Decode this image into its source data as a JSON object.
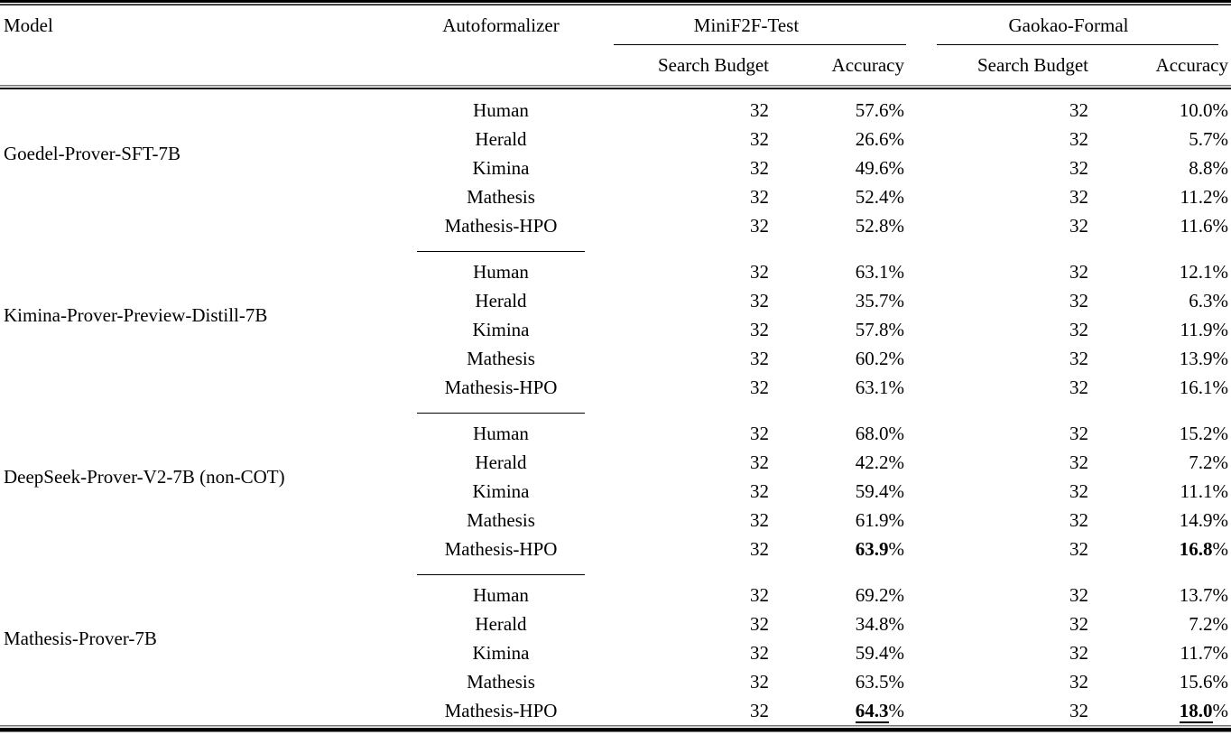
{
  "table": {
    "percent_sign": "%",
    "header": {
      "model": "Model",
      "autoformalizer": "Autoformalizer",
      "benchmarks": [
        {
          "label": "MiniF2F-Test",
          "sub": [
            "Search Budget",
            "Accuracy"
          ]
        },
        {
          "label": "Gaokao-Formal",
          "sub": [
            "Search Budget",
            "Accuracy"
          ]
        }
      ]
    },
    "groups": [
      {
        "model": "Goedel-Prover-SFT-7B",
        "rows": [
          {
            "autoformalizer": "Human",
            "minif2f": {
              "budget": "32",
              "accuracy": "57.6",
              "bold": false,
              "underline": false
            },
            "gaokao": {
              "budget": "32",
              "accuracy": "10.0",
              "bold": false,
              "underline": false
            }
          },
          {
            "autoformalizer": "Herald",
            "minif2f": {
              "budget": "32",
              "accuracy": "26.6",
              "bold": false,
              "underline": false
            },
            "gaokao": {
              "budget": "32",
              "accuracy": "5.7",
              "bold": false,
              "underline": false
            }
          },
          {
            "autoformalizer": "Kimina",
            "minif2f": {
              "budget": "32",
              "accuracy": "49.6",
              "bold": false,
              "underline": false
            },
            "gaokao": {
              "budget": "32",
              "accuracy": "8.8",
              "bold": false,
              "underline": false
            }
          },
          {
            "autoformalizer": "Mathesis",
            "minif2f": {
              "budget": "32",
              "accuracy": "52.4",
              "bold": false,
              "underline": false
            },
            "gaokao": {
              "budget": "32",
              "accuracy": "11.2",
              "bold": false,
              "underline": false
            }
          },
          {
            "autoformalizer": "Mathesis-HPO",
            "minif2f": {
              "budget": "32",
              "accuracy": "52.8",
              "bold": false,
              "underline": false
            },
            "gaokao": {
              "budget": "32",
              "accuracy": "11.6",
              "bold": false,
              "underline": false
            }
          }
        ]
      },
      {
        "model": "Kimina-Prover-Preview-Distill-7B",
        "rows": [
          {
            "autoformalizer": "Human",
            "minif2f": {
              "budget": "32",
              "accuracy": "63.1",
              "bold": false,
              "underline": false
            },
            "gaokao": {
              "budget": "32",
              "accuracy": "12.1",
              "bold": false,
              "underline": false
            }
          },
          {
            "autoformalizer": "Herald",
            "minif2f": {
              "budget": "32",
              "accuracy": "35.7",
              "bold": false,
              "underline": false
            },
            "gaokao": {
              "budget": "32",
              "accuracy": "6.3",
              "bold": false,
              "underline": false
            }
          },
          {
            "autoformalizer": "Kimina",
            "minif2f": {
              "budget": "32",
              "accuracy": "57.8",
              "bold": false,
              "underline": false
            },
            "gaokao": {
              "budget": "32",
              "accuracy": "11.9",
              "bold": false,
              "underline": false
            }
          },
          {
            "autoformalizer": "Mathesis",
            "minif2f": {
              "budget": "32",
              "accuracy": "60.2",
              "bold": false,
              "underline": false
            },
            "gaokao": {
              "budget": "32",
              "accuracy": "13.9",
              "bold": false,
              "underline": false
            }
          },
          {
            "autoformalizer": "Mathesis-HPO",
            "minif2f": {
              "budget": "32",
              "accuracy": "63.1",
              "bold": false,
              "underline": false
            },
            "gaokao": {
              "budget": "32",
              "accuracy": "16.1",
              "bold": false,
              "underline": false
            }
          }
        ]
      },
      {
        "model": "DeepSeek-Prover-V2-7B (non-COT)",
        "rows": [
          {
            "autoformalizer": "Human",
            "minif2f": {
              "budget": "32",
              "accuracy": "68.0",
              "bold": false,
              "underline": false
            },
            "gaokao": {
              "budget": "32",
              "accuracy": "15.2",
              "bold": false,
              "underline": false
            }
          },
          {
            "autoformalizer": "Herald",
            "minif2f": {
              "budget": "32",
              "accuracy": "42.2",
              "bold": false,
              "underline": false
            },
            "gaokao": {
              "budget": "32",
              "accuracy": "7.2",
              "bold": false,
              "underline": false
            }
          },
          {
            "autoformalizer": "Kimina",
            "minif2f": {
              "budget": "32",
              "accuracy": "59.4",
              "bold": false,
              "underline": false
            },
            "gaokao": {
              "budget": "32",
              "accuracy": "11.1",
              "bold": false,
              "underline": false
            }
          },
          {
            "autoformalizer": "Mathesis",
            "minif2f": {
              "budget": "32",
              "accuracy": "61.9",
              "bold": false,
              "underline": false
            },
            "gaokao": {
              "budget": "32",
              "accuracy": "14.9",
              "bold": false,
              "underline": false
            }
          },
          {
            "autoformalizer": "Mathesis-HPO",
            "minif2f": {
              "budget": "32",
              "accuracy": "63.9",
              "bold": true,
              "underline": false
            },
            "gaokao": {
              "budget": "32",
              "accuracy": "16.8",
              "bold": true,
              "underline": false
            }
          }
        ]
      },
      {
        "model": "Mathesis-Prover-7B",
        "rows": [
          {
            "autoformalizer": "Human",
            "minif2f": {
              "budget": "32",
              "accuracy": "69.2",
              "bold": false,
              "underline": false
            },
            "gaokao": {
              "budget": "32",
              "accuracy": "13.7",
              "bold": false,
              "underline": false
            }
          },
          {
            "autoformalizer": "Herald",
            "minif2f": {
              "budget": "32",
              "accuracy": "34.8",
              "bold": false,
              "underline": false
            },
            "gaokao": {
              "budget": "32",
              "accuracy": "7.2",
              "bold": false,
              "underline": false
            }
          },
          {
            "autoformalizer": "Kimina",
            "minif2f": {
              "budget": "32",
              "accuracy": "59.4",
              "bold": false,
              "underline": false
            },
            "gaokao": {
              "budget": "32",
              "accuracy": "11.7",
              "bold": false,
              "underline": false
            }
          },
          {
            "autoformalizer": "Mathesis",
            "minif2f": {
              "budget": "32",
              "accuracy": "63.5",
              "bold": false,
              "underline": false
            },
            "gaokao": {
              "budget": "32",
              "accuracy": "15.6",
              "bold": false,
              "underline": false
            }
          },
          {
            "autoformalizer": "Mathesis-HPO",
            "minif2f": {
              "budget": "32",
              "accuracy": "64.3",
              "bold": true,
              "underline": true
            },
            "gaokao": {
              "budget": "32",
              "accuracy": "18.0",
              "bold": true,
              "underline": true
            }
          }
        ]
      }
    ]
  }
}
